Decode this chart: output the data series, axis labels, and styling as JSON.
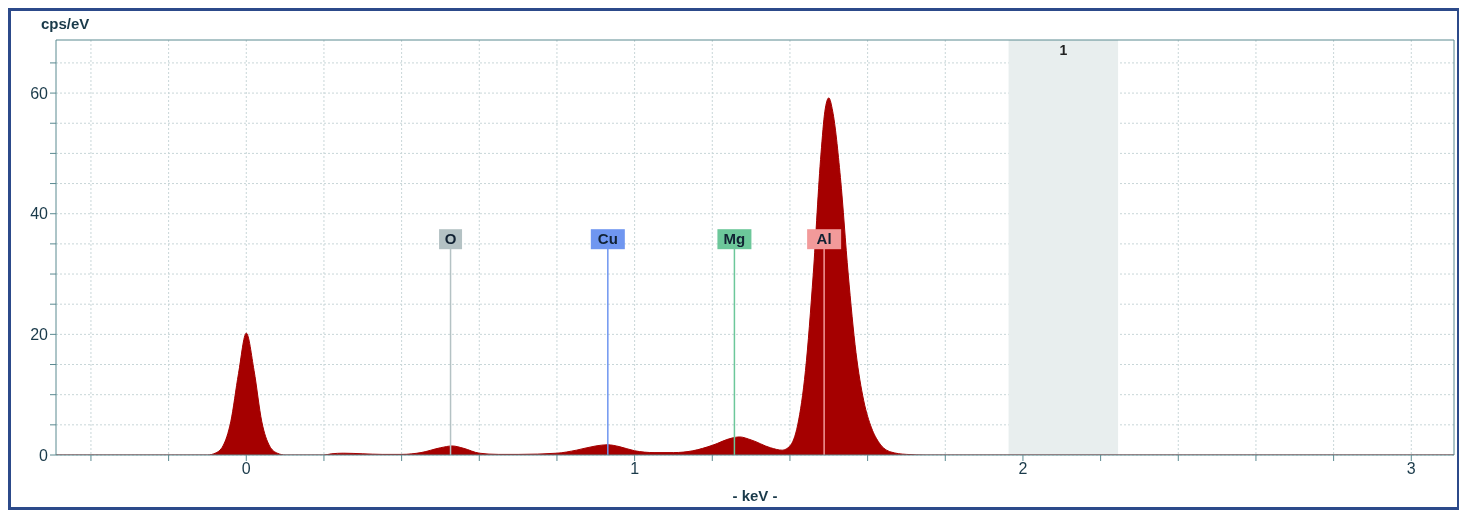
{
  "chart_data": {
    "type": "area",
    "xlabel": "- keV -",
    "ylabel": "cps/eV",
    "x": [
      -0.49,
      -0.1,
      -0.08,
      -0.06,
      -0.04,
      -0.02,
      0,
      0.02,
      0.04,
      0.06,
      0.08,
      0.1,
      0.2,
      0.22,
      0.25,
      0.3,
      0.35,
      0.4,
      0.45,
      0.5,
      0.53,
      0.56,
      0.6,
      0.65,
      0.7,
      0.8,
      0.85,
      0.9,
      0.93,
      0.96,
      1.0,
      1.05,
      1.1,
      1.15,
      1.2,
      1.25,
      1.27,
      1.3,
      1.35,
      1.38,
      1.4,
      1.42,
      1.44,
      1.46,
      1.48,
      1.49,
      1.5,
      1.51,
      1.53,
      1.55,
      1.57,
      1.59,
      1.61,
      1.63,
      1.66,
      1.7,
      1.75,
      3.11
    ],
    "series": [
      {
        "color": "#a50000",
        "values": [
          0,
          0,
          0.3,
          1.5,
          5.5,
          13.5,
          20.2,
          14,
          5.5,
          1.5,
          0.3,
          0,
          0,
          0.2,
          0.3,
          0.2,
          0.1,
          0.1,
          0.4,
          1.2,
          1.5,
          1.1,
          0.3,
          0.1,
          0.1,
          0.3,
          0.8,
          1.5,
          1.7,
          1.4,
          0.7,
          0.4,
          0.4,
          0.7,
          1.6,
          2.8,
          3.0,
          2.5,
          1.2,
          0.8,
          1.5,
          5,
          14,
          30,
          50,
          57,
          59.2,
          57,
          46,
          30,
          17,
          9,
          4.5,
          2,
          0.5,
          0.1,
          0,
          0
        ]
      }
    ],
    "xlim": [
      -0.49,
      3.11
    ],
    "ylim": [
      0,
      68.8
    ],
    "xticks": [
      {
        "value": -0.4,
        "label": null
      },
      {
        "value": -0.2,
        "label": null
      },
      0,
      {
        "value": 0.2,
        "label": null
      },
      {
        "value": 0.4,
        "label": null
      },
      {
        "value": 0.6,
        "label": null
      },
      {
        "value": 0.8,
        "label": null
      },
      1,
      {
        "value": 1.2,
        "label": null
      },
      {
        "value": 1.4,
        "label": null
      },
      {
        "value": 1.6,
        "label": null
      },
      {
        "value": 1.8,
        "label": null
      },
      2,
      {
        "value": 2.2,
        "label": null
      },
      {
        "value": 2.4,
        "label": null
      },
      {
        "value": 2.6,
        "label": null
      },
      {
        "value": 2.8,
        "label": null
      },
      3
    ],
    "yticks": [
      0,
      {
        "value": 5,
        "label": null
      },
      {
        "value": 10,
        "label": null
      },
      {
        "value": 15,
        "label": null
      },
      20,
      {
        "value": 25,
        "label": null
      },
      {
        "value": 30,
        "label": null
      },
      {
        "value": 35,
        "label": null
      },
      40,
      {
        "value": 45,
        "label": null
      },
      {
        "value": 50,
        "label": null
      },
      {
        "value": 55,
        "label": null
      },
      60,
      {
        "value": 65,
        "label": null
      }
    ],
    "grid": true,
    "marker": "none",
    "legend": false,
    "bands": [
      {
        "axis": "x",
        "from": 1.963,
        "to": 2.245,
        "label": "1",
        "color": "#e8eeee"
      }
    ],
    "ref_lines": [
      {
        "axis": "x",
        "value": 0.526,
        "label": "O",
        "color": "#b4c2c4"
      },
      {
        "axis": "x",
        "value": 0.931,
        "label": "Cu",
        "color": "#6f96f0"
      },
      {
        "axis": "x",
        "value": 1.257,
        "label": "Mg",
        "color": "#6cc79a"
      },
      {
        "axis": "x",
        "value": 1.488,
        "label": "Al",
        "color": "#f29a9a"
      }
    ]
  }
}
